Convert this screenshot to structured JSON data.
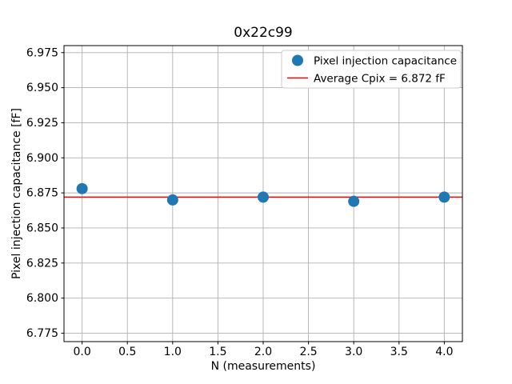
{
  "chart_data": {
    "type": "scatter",
    "title": "0x22c99",
    "xlabel": "N (measurements)",
    "ylabel": "Pixel injection capacitance [fF]",
    "xlim": [
      -0.2,
      4.2
    ],
    "ylim": [
      6.769,
      6.98
    ],
    "xticks": [
      0.0,
      0.5,
      1.0,
      1.5,
      2.0,
      2.5,
      3.0,
      3.5,
      4.0
    ],
    "xtick_labels": [
      "0.0",
      "0.5",
      "1.0",
      "1.5",
      "2.0",
      "2.5",
      "3.0",
      "3.5",
      "4.0"
    ],
    "yticks": [
      6.775,
      6.8,
      6.825,
      6.85,
      6.875,
      6.9,
      6.925,
      6.95,
      6.975
    ],
    "ytick_labels": [
      "6.775",
      "6.800",
      "6.825",
      "6.850",
      "6.875",
      "6.900",
      "6.925",
      "6.950",
      "6.975"
    ],
    "grid": true,
    "legend_position": "upper right",
    "series": [
      {
        "name": "Pixel injection capacitance",
        "kind": "scatter",
        "color": "#1f77b4",
        "x": [
          0,
          1,
          2,
          3,
          4
        ],
        "y": [
          6.878,
          6.87,
          6.872,
          6.869,
          6.872
        ]
      },
      {
        "name": "Average Cpix = 6.872 fF",
        "kind": "hline",
        "color": "#ff0000",
        "value": 6.872
      }
    ],
    "average_cpix_fF": 6.872
  },
  "colors": {
    "background": "#ffffff",
    "grid": "#b0b0b0",
    "axes_edge": "#000000",
    "legend_edge": "#cccccc"
  }
}
